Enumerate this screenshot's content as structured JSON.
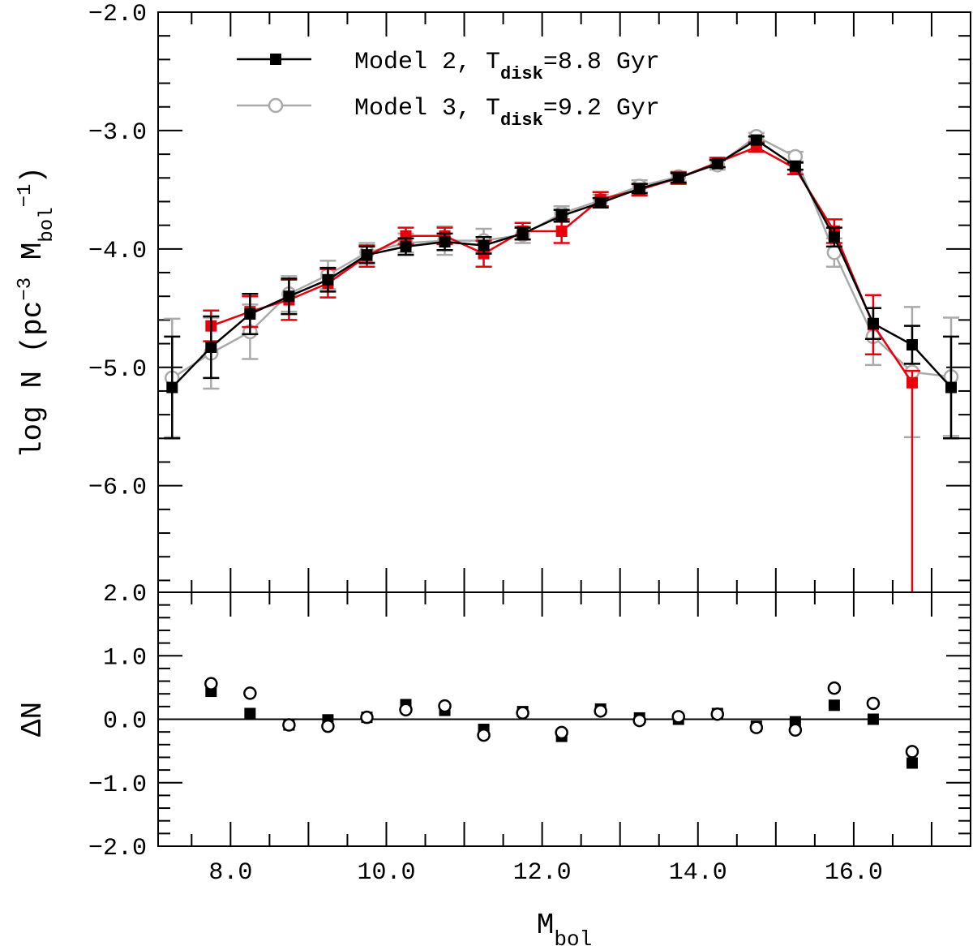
{
  "chart_data": [
    {
      "type": "line",
      "x": [
        7.25,
        7.75,
        8.25,
        8.75,
        9.25,
        9.75,
        10.25,
        10.75,
        11.25,
        11.75,
        12.25,
        12.75,
        13.25,
        13.75,
        14.25,
        14.75,
        15.25,
        15.75,
        16.25,
        16.75,
        17.25
      ],
      "series": [
        {
          "name": [
            "Model 2, T",
            "disk",
            "=8.8 Gyr"
          ],
          "color": "#000000",
          "marker": "square",
          "values": [
            -5.17,
            -4.83,
            -4.55,
            -4.4,
            -4.26,
            -4.05,
            -3.98,
            -3.94,
            -3.97,
            -3.87,
            -3.72,
            -3.61,
            -3.49,
            -3.4,
            -3.28,
            -3.08,
            -3.3,
            -3.9,
            -4.63,
            -4.81,
            -5.17
          ],
          "errors": [
            0.43,
            0.26,
            0.17,
            0.15,
            0.1,
            0.07,
            0.07,
            0.07,
            0.07,
            0.05,
            0.05,
            0.04,
            0.04,
            0.04,
            0.03,
            0.03,
            0.03,
            0.08,
            0.13,
            0.16,
            0.43
          ]
        },
        {
          "name": [
            "Model 3, T",
            "disk",
            "=9.2 Gyr"
          ],
          "color": "#aaaaaa",
          "marker": "circle",
          "values": [
            -5.09,
            -4.88,
            -4.7,
            -4.38,
            -4.22,
            -4.03,
            -3.95,
            -3.93,
            -3.93,
            -3.88,
            -3.7,
            -3.59,
            -3.47,
            -3.39,
            -3.29,
            -3.05,
            -3.22,
            -4.03,
            -4.74,
            -5.04,
            -5.08
          ],
          "errors": [
            0.5,
            0.3,
            0.23,
            0.15,
            0.12,
            0.08,
            0.08,
            0.12,
            0.1,
            0.07,
            0.06,
            0.05,
            0.05,
            0.04,
            0.04,
            0.03,
            0.04,
            0.12,
            0.24,
            0.55,
            0.5
          ]
        },
        {
          "color": "#e8000b",
          "marker": "square",
          "values": [
            null,
            -4.65,
            -4.53,
            -4.43,
            -4.29,
            -4.06,
            -3.89,
            -3.89,
            -4.04,
            -3.85,
            -3.85,
            -3.58,
            -3.5,
            -3.4,
            -3.27,
            -3.14,
            -3.32,
            -3.85,
            -4.64,
            -5.13,
            null
          ],
          "errors": [
            null,
            0.13,
            0.13,
            0.17,
            0.12,
            0.09,
            0.07,
            0.07,
            0.11,
            0.07,
            0.1,
            0.06,
            0.05,
            0.05,
            0.04,
            0.04,
            0.05,
            0.1,
            0.25,
            [
              2.0,
              0.1
            ],
            null
          ]
        }
      ],
      "xlim": [
        7.07,
        17.5
      ],
      "xticks_unlabeled": [
        8,
        9,
        10,
        11,
        12,
        13,
        14,
        15,
        16,
        17
      ],
      "xticks_minor": [
        7.5,
        8.5,
        9.5,
        10.5,
        11.5,
        12.5,
        13.5,
        14.5,
        15.5,
        16.5
      ],
      "ylim": [
        -6.9,
        -2.0
      ],
      "yticks": [
        {
          "value": -2,
          "label": "−2.0"
        },
        {
          "value": -3,
          "label": "−3.0"
        },
        {
          "value": -4,
          "label": "−4.0"
        },
        {
          "value": -5,
          "label": "−5.0"
        },
        {
          "value": -6,
          "label": "−6.0"
        }
      ],
      "yticks_minor": [
        -2.2,
        -2.4,
        -2.6,
        -2.8,
        -3.2,
        -3.4,
        -3.6,
        -3.8,
        -4.2,
        -4.4,
        -4.6,
        -4.8,
        -5.2,
        -5.4,
        -5.6,
        -5.8,
        -6.2,
        -6.4,
        -6.6,
        -6.8
      ],
      "ylabel": [
        "log N (pc",
        "−3",
        " M",
        "bol",
        "−1",
        ")"
      ],
      "legend": "upper left"
    },
    {
      "type": "scatter",
      "x": [
        7.75,
        8.25,
        8.75,
        9.25,
        9.75,
        10.25,
        10.75,
        11.25,
        11.75,
        12.25,
        12.75,
        13.25,
        13.75,
        14.25,
        14.75,
        15.25,
        15.75,
        16.25,
        16.75
      ],
      "series": [
        {
          "color": "#000000",
          "marker": "square",
          "values": [
            0.44,
            0.09,
            -0.09,
            -0.01,
            0.03,
            0.23,
            0.14,
            -0.16,
            0.12,
            -0.27,
            0.16,
            0.02,
            0.0,
            0.09,
            -0.11,
            -0.04,
            0.22,
            0.0,
            -0.69
          ]
        },
        {
          "color": "#000000",
          "marker": "open-circle",
          "values": [
            0.56,
            0.41,
            -0.09,
            -0.11,
            0.03,
            0.15,
            0.21,
            -0.25,
            0.1,
            -0.21,
            0.13,
            -0.02,
            0.04,
            0.08,
            -0.13,
            -0.17,
            0.49,
            0.25,
            -0.51
          ]
        }
      ],
      "xlim": [
        7.07,
        17.5
      ],
      "xticks": [
        {
          "value": 8,
          "label": "8.0"
        },
        {
          "value": 10,
          "label": "10.0"
        },
        {
          "value": 12,
          "label": "12.0"
        },
        {
          "value": 14,
          "label": "14.0"
        },
        {
          "value": 16,
          "label": "16.0"
        }
      ],
      "xticks_unlabeled": [
        9,
        11,
        13,
        15,
        17
      ],
      "xticks_minor": [
        7.5,
        8.5,
        9.5,
        10.5,
        11.5,
        12.5,
        13.5,
        14.5,
        15.5,
        16.5
      ],
      "ylim": [
        -2.0,
        2.0
      ],
      "yticks": [
        {
          "value": 2,
          "label": "2.0"
        },
        {
          "value": 1,
          "label": "1.0"
        },
        {
          "value": 0,
          "label": "0.0"
        },
        {
          "value": -1,
          "label": "−1.0"
        },
        {
          "value": -2,
          "label": "−2.0"
        }
      ],
      "yticks_minor": [
        1.8,
        1.6,
        1.4,
        1.2,
        0.8,
        0.6,
        0.4,
        0.2,
        -0.2,
        -0.4,
        -0.6,
        -0.8,
        -1.2,
        -1.4,
        -1.6,
        -1.8
      ],
      "reference_line": 0,
      "ylabel": [
        "ΔN"
      ],
      "xlabel": [
        "M",
        "bol"
      ]
    }
  ]
}
